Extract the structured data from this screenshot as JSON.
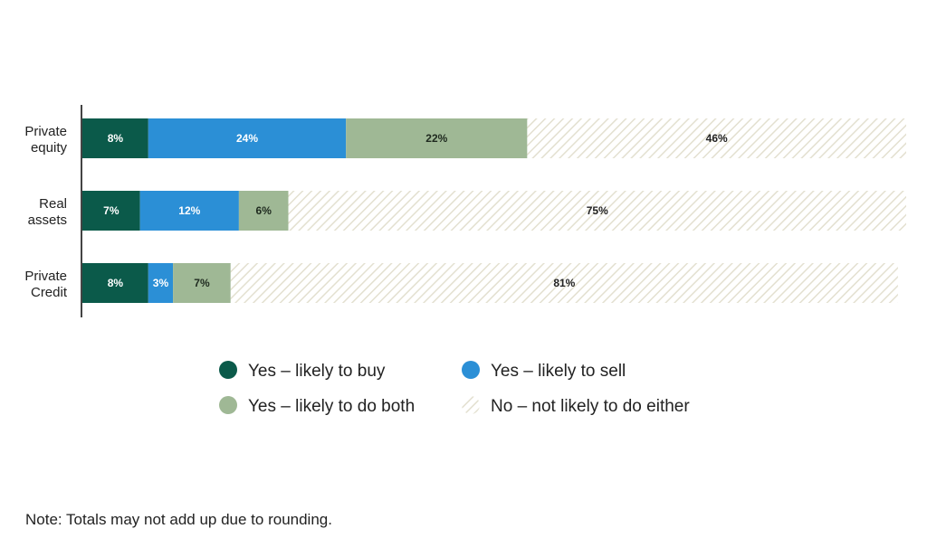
{
  "chart_data": {
    "type": "bar",
    "orientation": "horizontal",
    "stacked": true,
    "title": "",
    "xlabel": "",
    "ylabel": "",
    "xlim": [
      0,
      100
    ],
    "grid": false,
    "legend_position": "bottom",
    "categories": [
      [
        "Private",
        "equity"
      ],
      [
        "Real",
        "assets"
      ],
      [
        "Private",
        "Credit"
      ]
    ],
    "series": [
      {
        "name": "Yes – likely to buy",
        "values": [
          8,
          7,
          8
        ],
        "labels": [
          "8%",
          "7%",
          "8%"
        ],
        "color": "#0b5a4a",
        "label_color": "#ffffff",
        "pattern": "solid"
      },
      {
        "name": "Yes – likely to sell",
        "values": [
          24,
          12,
          3
        ],
        "labels": [
          "24%",
          "12%",
          "3%"
        ],
        "color": "#2b8fd6",
        "label_color": "#ffffff",
        "pattern": "solid"
      },
      {
        "name": "Yes – likely to do both",
        "values": [
          22,
          6,
          7
        ],
        "labels": [
          "22%",
          "6%",
          "7%"
        ],
        "color": "#9fb895",
        "label_color": "#1f2a1f",
        "pattern": "solid"
      },
      {
        "name": "No – not likely to do either",
        "values": [
          46,
          75,
          81
        ],
        "labels": [
          "46%",
          "75%",
          "81%"
        ],
        "color": "#e3e0d0",
        "label_color": "#222222",
        "pattern": "hatched"
      }
    ],
    "legend_order": [
      0,
      2,
      1,
      3
    ]
  },
  "note": "Note: Totals may not add up due to rounding.",
  "colors": {
    "axis": "#444444",
    "hatch_background": "#ffffff"
  }
}
